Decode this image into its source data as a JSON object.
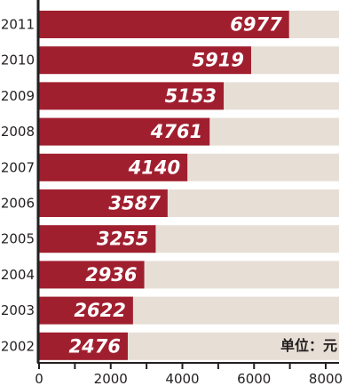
{
  "chart_data": {
    "type": "bar",
    "orientation": "horizontal",
    "categories": [
      "2011",
      "2010",
      "2009",
      "2008",
      "2007",
      "2006",
      "2005",
      "2004",
      "2003",
      "2002"
    ],
    "values": [
      6977,
      5919,
      5153,
      4761,
      4140,
      3587,
      3255,
      2936,
      2622,
      2476
    ],
    "xticks": [
      "0",
      "2000",
      "4000",
      "6000",
      "8000"
    ],
    "xlim": [
      0,
      8000
    ],
    "unit_label": "单位：元",
    "colors": {
      "bar": "#a01f2f",
      "track": "#e7dfd6",
      "bar_text": "#ffffff",
      "axis": "#231f20"
    }
  }
}
